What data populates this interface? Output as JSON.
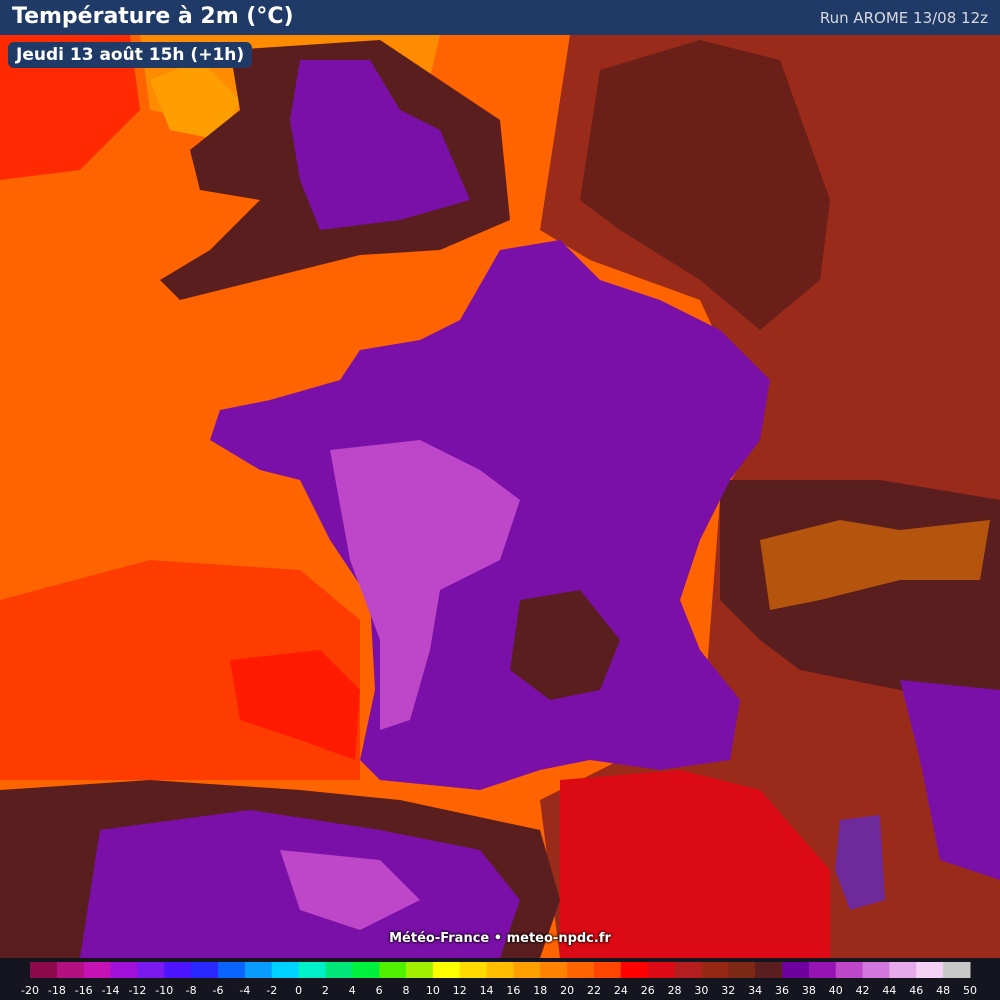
{
  "header": {
    "title": "Température à 2m (°C)",
    "run": "Run AROME 13/08 12z"
  },
  "date_label": "Jeudi 13 août 15h (+1h)",
  "credit": "Météo-France • meteo-npdc.fr",
  "legend": {
    "labels": [
      "-20",
      "-18",
      "-16",
      "-14",
      "-12",
      "-10",
      "-8",
      "-6",
      "-4",
      "-2",
      "0",
      "2",
      "4",
      "6",
      "8",
      "10",
      "12",
      "14",
      "16",
      "18",
      "20",
      "22",
      "24",
      "26",
      "28",
      "30",
      "32",
      "34",
      "36",
      "38",
      "40",
      "42",
      "44",
      "46",
      "48",
      "50"
    ],
    "colors": [
      "#8c0a4b",
      "#b4107f",
      "#c412b4",
      "#a010d8",
      "#7a1af0",
      "#4c14ff",
      "#2828ff",
      "#0a64ff",
      "#0a9bff",
      "#00d2ff",
      "#00f0c8",
      "#00e678",
      "#00f040",
      "#50f000",
      "#a0f000",
      "#ffff00",
      "#ffdc00",
      "#ffbe00",
      "#ffa000",
      "#ff8200",
      "#ff6400",
      "#ff4600",
      "#ff0000",
      "#dc0a14",
      "#b41e1e",
      "#962814",
      "#7d2814",
      "#5a1e1e",
      "#6e00a0",
      "#9614b4",
      "#be46c8",
      "#d278dc",
      "#e6aaeb",
      "#f5d2f5",
      "#c8c8c8"
    ]
  }
}
